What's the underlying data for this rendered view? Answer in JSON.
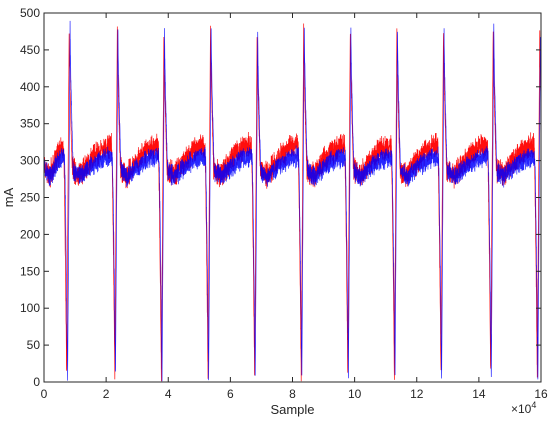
{
  "chart_data": {
    "type": "line",
    "title": "",
    "xlabel": "Sample",
    "ylabel": "mA",
    "x_exponent_label": "×10",
    "x_exponent": "4",
    "xlim": [
      0,
      16
    ],
    "ylim": [
      0,
      500
    ],
    "x_ticks": [
      "0",
      "2",
      "4",
      "6",
      "8",
      "10",
      "12",
      "14",
      "16"
    ],
    "y_ticks": [
      "0",
      "50",
      "100",
      "150",
      "200",
      "250",
      "300",
      "350",
      "400",
      "450",
      "500"
    ],
    "grid": false,
    "legend": "none",
    "series": [
      {
        "color": "#ff0000",
        "pulse_centers_x": [
          0.75,
          2.3,
          3.8,
          5.3,
          6.8,
          8.3,
          9.8,
          11.3,
          12.8,
          14.4,
          15.9
        ],
        "peak_values": [
          480,
          478,
          476,
          485,
          478,
          482,
          477,
          478,
          480,
          480,
          478
        ],
        "trough_values": [
          5,
          8,
          3,
          6,
          7,
          5,
          8,
          6,
          5,
          7,
          3
        ],
        "baseline_start": 295,
        "baseline_dip": 280,
        "baseline_end": 320,
        "noise_amplitude": 20
      },
      {
        "color": "#0000ff",
        "pulse_centers_x": [
          0.78,
          2.32,
          3.82,
          5.32,
          6.82,
          8.32,
          9.82,
          11.32,
          12.82,
          14.42,
          15.92
        ],
        "peak_values": [
          485,
          482,
          478,
          487,
          475,
          485,
          480,
          480,
          478,
          485,
          475
        ],
        "trough_values": [
          3,
          5,
          2,
          4,
          5,
          3,
          5,
          4,
          3,
          5,
          2
        ],
        "baseline_start": 292,
        "baseline_dip": 278,
        "baseline_end": 305,
        "noise_amplitude": 16
      }
    ]
  }
}
